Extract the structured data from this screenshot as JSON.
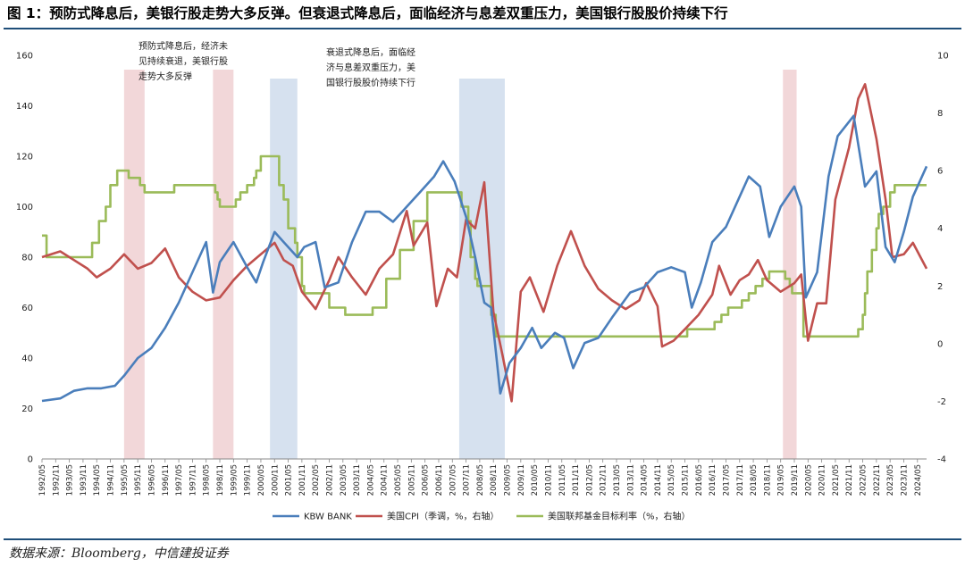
{
  "header": {
    "title": "图 1：预防式降息后，美银行股走势大多反弹。但衰退式降息后，面临经济与息差双重压力，美国银行股股价持续下行"
  },
  "footer": {
    "source": "数据来源：Bloomberg，中信建投证券"
  },
  "chart_data": {
    "type": "line",
    "title": "",
    "xlabel": "",
    "ylabel": "",
    "x_start": "1992/05",
    "x_end": "2024/09",
    "x_ticks": [
      "1992/05",
      "1992/11",
      "1993/05",
      "1993/11",
      "1994/05",
      "1994/11",
      "1995/05",
      "1995/11",
      "1996/05",
      "1996/11",
      "1997/05",
      "1997/11",
      "1998/05",
      "1998/11",
      "1999/05",
      "1999/11",
      "2000/05",
      "2000/11",
      "2001/05",
      "2001/11",
      "2002/05",
      "2002/11",
      "2003/05",
      "2003/11",
      "2004/05",
      "2004/11",
      "2005/05",
      "2005/11",
      "2006/05",
      "2006/11",
      "2007/05",
      "2007/11",
      "2008/05",
      "2008/11",
      "2009/05",
      "2009/11",
      "2010/05",
      "2010/11",
      "2011/05",
      "2011/11",
      "2012/05",
      "2012/11",
      "2013/05",
      "2013/11",
      "2014/05",
      "2014/11",
      "2015/05",
      "2015/11",
      "2016/05",
      "2016/11",
      "2017/05",
      "2017/11",
      "2018/05",
      "2018/11",
      "2019/05",
      "2019/11",
      "2020/05",
      "2020/11",
      "2021/05",
      "2021/11",
      "2022/05",
      "2022/11",
      "2023/05",
      "2023/11",
      "2024/05"
    ],
    "y_left": {
      "range": [
        0,
        160
      ],
      "ticks": [
        "0",
        "20",
        "40",
        "60",
        "80",
        "100",
        "120",
        "140",
        "160"
      ]
    },
    "y_right": {
      "range": [
        -4,
        10
      ],
      "ticks": [
        "-4",
        "-2",
        "0",
        "2",
        "4",
        "6",
        "8",
        "10"
      ]
    },
    "shaded_periods": [
      {
        "start": "1995/05",
        "end": "1996/02",
        "kind": "preventive",
        "color": "#f2d7d9"
      },
      {
        "start": "1998/08",
        "end": "1999/05",
        "kind": "preventive",
        "color": "#f2d7d9"
      },
      {
        "start": "2000/09",
        "end": "2001/09",
        "kind": "recession",
        "color": "#d6e1ef"
      },
      {
        "start": "2007/08",
        "end": "2009/04",
        "kind": "recession",
        "color": "#d6e1ef"
      },
      {
        "start": "2019/06",
        "end": "2019/12",
        "kind": "preventive",
        "color": "#f2d7d9"
      }
    ],
    "annotations": [
      {
        "lines": [
          "预防式降息后，经济未",
          "见持续衰退，美银行股",
          "走势大多反弹"
        ]
      },
      {
        "lines": [
          "衰退式降息后，面临经",
          "济与息差双重压力，美",
          "国银行股股价持续下行"
        ]
      }
    ],
    "series": [
      {
        "name": "KBW BANK",
        "axis": "left",
        "color": "#4a7ebb",
        "points": [
          [
            "1992/05",
            23
          ],
          [
            "1993/01",
            24
          ],
          [
            "1993/07",
            27
          ],
          [
            "1994/01",
            28
          ],
          [
            "1994/07",
            28
          ],
          [
            "1995/01",
            29
          ],
          [
            "1995/05",
            33
          ],
          [
            "1995/11",
            40
          ],
          [
            "1996/05",
            44
          ],
          [
            "1996/11",
            52
          ],
          [
            "1997/05",
            62
          ],
          [
            "1997/11",
            74
          ],
          [
            "1998/05",
            86
          ],
          [
            "1998/08",
            66
          ],
          [
            "1998/11",
            78
          ],
          [
            "1999/05",
            86
          ],
          [
            "1999/11",
            76
          ],
          [
            "2000/03",
            70
          ],
          [
            "2000/06",
            78
          ],
          [
            "2000/11",
            90
          ],
          [
            "2001/03",
            86
          ],
          [
            "2001/09",
            80
          ],
          [
            "2001/12",
            84
          ],
          [
            "2002/05",
            86
          ],
          [
            "2002/09",
            68
          ],
          [
            "2003/03",
            70
          ],
          [
            "2003/09",
            86
          ],
          [
            "2004/03",
            98
          ],
          [
            "2004/09",
            98
          ],
          [
            "2005/03",
            94
          ],
          [
            "2005/09",
            100
          ],
          [
            "2006/03",
            106
          ],
          [
            "2006/09",
            112
          ],
          [
            "2007/01",
            118
          ],
          [
            "2007/06",
            110
          ],
          [
            "2007/11",
            96
          ],
          [
            "2008/03",
            80
          ],
          [
            "2008/07",
            62
          ],
          [
            "2008/10",
            60
          ],
          [
            "2009/02",
            26
          ],
          [
            "2009/06",
            38
          ],
          [
            "2009/11",
            44
          ],
          [
            "2010/04",
            52
          ],
          [
            "2010/08",
            44
          ],
          [
            "2011/02",
            50
          ],
          [
            "2011/06",
            48
          ],
          [
            "2011/10",
            36
          ],
          [
            "2012/03",
            46
          ],
          [
            "2012/09",
            48
          ],
          [
            "2013/03",
            56
          ],
          [
            "2013/11",
            66
          ],
          [
            "2014/05",
            68
          ],
          [
            "2014/11",
            74
          ],
          [
            "2015/05",
            76
          ],
          [
            "2015/11",
            74
          ],
          [
            "2016/02",
            60
          ],
          [
            "2016/06",
            70
          ],
          [
            "2016/11",
            86
          ],
          [
            "2017/05",
            92
          ],
          [
            "2017/11",
            104
          ],
          [
            "2018/03",
            112
          ],
          [
            "2018/08",
            108
          ],
          [
            "2018/12",
            88
          ],
          [
            "2019/05",
            100
          ],
          [
            "2019/11",
            108
          ],
          [
            "2020/02",
            100
          ],
          [
            "2020/04",
            64
          ],
          [
            "2020/09",
            74
          ],
          [
            "2021/02",
            112
          ],
          [
            "2021/06",
            128
          ],
          [
            "2022/01",
            136
          ],
          [
            "2022/06",
            108
          ],
          [
            "2022/11",
            114
          ],
          [
            "2023/03",
            84
          ],
          [
            "2023/07",
            78
          ],
          [
            "2023/11",
            90
          ],
          [
            "2024/03",
            104
          ],
          [
            "2024/09",
            116
          ]
        ]
      },
      {
        "name": "美国CPI（季调，%，右轴）",
        "axis": "right",
        "color": "#c0504d",
        "points": [
          [
            "1992/05",
            3.0
          ],
          [
            "1993/01",
            3.2
          ],
          [
            "1993/07",
            2.9
          ],
          [
            "1994/01",
            2.6
          ],
          [
            "1994/05",
            2.3
          ],
          [
            "1994/11",
            2.6
          ],
          [
            "1995/05",
            3.1
          ],
          [
            "1995/11",
            2.6
          ],
          [
            "1996/05",
            2.8
          ],
          [
            "1996/11",
            3.3
          ],
          [
            "1997/05",
            2.3
          ],
          [
            "1997/11",
            1.8
          ],
          [
            "1998/05",
            1.5
          ],
          [
            "1998/11",
            1.6
          ],
          [
            "1999/05",
            2.2
          ],
          [
            "1999/11",
            2.7
          ],
          [
            "2000/05",
            3.1
          ],
          [
            "2000/11",
            3.5
          ],
          [
            "2001/03",
            2.9
          ],
          [
            "2001/07",
            2.7
          ],
          [
            "2001/11",
            1.8
          ],
          [
            "2002/05",
            1.2
          ],
          [
            "2002/11",
            2.2
          ],
          [
            "2003/03",
            3.0
          ],
          [
            "2003/09",
            2.3
          ],
          [
            "2004/03",
            1.7
          ],
          [
            "2004/09",
            2.6
          ],
          [
            "2005/03",
            3.1
          ],
          [
            "2005/09",
            4.6
          ],
          [
            "2005/12",
            3.4
          ],
          [
            "2006/06",
            4.2
          ],
          [
            "2006/10",
            1.3
          ],
          [
            "2007/03",
            2.6
          ],
          [
            "2007/07",
            2.3
          ],
          [
            "2007/11",
            4.3
          ],
          [
            "2008/03",
            4.0
          ],
          [
            "2008/07",
            5.6
          ],
          [
            "2008/11",
            1.1
          ],
          [
            "2009/03",
            -0.4
          ],
          [
            "2009/07",
            -2.0
          ],
          [
            "2009/11",
            1.8
          ],
          [
            "2010/03",
            2.3
          ],
          [
            "2010/09",
            1.1
          ],
          [
            "2011/03",
            2.7
          ],
          [
            "2011/09",
            3.9
          ],
          [
            "2012/03",
            2.7
          ],
          [
            "2012/09",
            1.9
          ],
          [
            "2013/03",
            1.5
          ],
          [
            "2013/09",
            1.2
          ],
          [
            "2014/03",
            1.5
          ],
          [
            "2014/06",
            2.1
          ],
          [
            "2014/11",
            1.3
          ],
          [
            "2015/01",
            -0.1
          ],
          [
            "2015/06",
            0.1
          ],
          [
            "2015/11",
            0.5
          ],
          [
            "2016/05",
            1.0
          ],
          [
            "2016/11",
            1.7
          ],
          [
            "2017/02",
            2.7
          ],
          [
            "2017/07",
            1.7
          ],
          [
            "2017/11",
            2.2
          ],
          [
            "2018/03",
            2.4
          ],
          [
            "2018/07",
            2.9
          ],
          [
            "2018/11",
            2.2
          ],
          [
            "2019/05",
            1.8
          ],
          [
            "2019/11",
            2.1
          ],
          [
            "2020/02",
            2.4
          ],
          [
            "2020/05",
            0.1
          ],
          [
            "2020/09",
            1.4
          ],
          [
            "2021/01",
            1.4
          ],
          [
            "2021/05",
            5.0
          ],
          [
            "2021/11",
            6.8
          ],
          [
            "2022/03",
            8.5
          ],
          [
            "2022/06",
            9.0
          ],
          [
            "2022/11",
            7.1
          ],
          [
            "2023/03",
            5.0
          ],
          [
            "2023/06",
            3.0
          ],
          [
            "2023/11",
            3.1
          ],
          [
            "2024/03",
            3.5
          ],
          [
            "2024/09",
            2.6
          ]
        ]
      },
      {
        "name": "美国联邦基金目标利率（%，右轴）",
        "axis": "right",
        "color": "#9bbb59",
        "points": [
          [
            "1992/05",
            3.75
          ],
          [
            "1992/07",
            3.0
          ],
          [
            "1994/01",
            3.0
          ],
          [
            "1994/03",
            3.5
          ],
          [
            "1994/06",
            4.25
          ],
          [
            "1994/09",
            4.75
          ],
          [
            "1994/11",
            5.5
          ],
          [
            "1995/02",
            6.0
          ],
          [
            "1995/07",
            5.75
          ],
          [
            "1995/12",
            5.5
          ],
          [
            "1996/02",
            5.25
          ],
          [
            "1997/03",
            5.5
          ],
          [
            "1998/09",
            5.25
          ],
          [
            "1998/10",
            5.0
          ],
          [
            "1998/11",
            4.75
          ],
          [
            "1999/06",
            5.0
          ],
          [
            "1999/08",
            5.25
          ],
          [
            "1999/11",
            5.5
          ],
          [
            "2000/02",
            5.75
          ],
          [
            "2000/03",
            6.0
          ],
          [
            "2000/05",
            6.5
          ],
          [
            "2001/01",
            5.5
          ],
          [
            "2001/03",
            5.0
          ],
          [
            "2001/05",
            4.0
          ],
          [
            "2001/08",
            3.5
          ],
          [
            "2001/09",
            3.0
          ],
          [
            "2001/11",
            2.0
          ],
          [
            "2001/12",
            1.75
          ],
          [
            "2002/11",
            1.25
          ],
          [
            "2003/06",
            1.0
          ],
          [
            "2004/06",
            1.25
          ],
          [
            "2004/12",
            2.25
          ],
          [
            "2005/06",
            3.25
          ],
          [
            "2005/12",
            4.25
          ],
          [
            "2006/06",
            5.25
          ],
          [
            "2007/09",
            4.75
          ],
          [
            "2007/12",
            4.25
          ],
          [
            "2008/01",
            3.0
          ],
          [
            "2008/03",
            2.25
          ],
          [
            "2008/04",
            2.0
          ],
          [
            "2008/10",
            1.0
          ],
          [
            "2008/12",
            0.25
          ],
          [
            "2015/12",
            0.5
          ],
          [
            "2016/12",
            0.75
          ],
          [
            "2017/03",
            1.0
          ],
          [
            "2017/06",
            1.25
          ],
          [
            "2017/12",
            1.5
          ],
          [
            "2018/03",
            1.75
          ],
          [
            "2018/06",
            2.0
          ],
          [
            "2018/09",
            2.25
          ],
          [
            "2018/12",
            2.5
          ],
          [
            "2019/07",
            2.25
          ],
          [
            "2019/09",
            2.0
          ],
          [
            "2019/10",
            1.75
          ],
          [
            "2020/03",
            0.25
          ],
          [
            "2022/03",
            0.5
          ],
          [
            "2022/05",
            1.0
          ],
          [
            "2022/06",
            1.75
          ],
          [
            "2022/07",
            2.5
          ],
          [
            "2022/09",
            3.25
          ],
          [
            "2022/11",
            4.0
          ],
          [
            "2022/12",
            4.5
          ],
          [
            "2023/02",
            4.75
          ],
          [
            "2023/05",
            5.25
          ],
          [
            "2023/07",
            5.5
          ],
          [
            "2024/09",
            5.5
          ]
        ]
      }
    ],
    "legend": {
      "position": "bottom"
    }
  }
}
